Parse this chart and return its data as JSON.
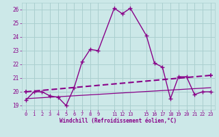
{
  "xlabel": "Windchill (Refroidissement éolien,°C)",
  "bg_color": "#cce8e8",
  "grid_color": "#aacfcf",
  "line_color": "#880088",
  "ylim": [
    18.7,
    26.5
  ],
  "xlim": [
    -0.5,
    23.5
  ],
  "yticks": [
    19,
    20,
    21,
    22,
    23,
    24,
    25,
    26
  ],
  "xticks": [
    0,
    1,
    2,
    3,
    4,
    5,
    6,
    7,
    8,
    9,
    11,
    12,
    13,
    15,
    16,
    17,
    18,
    19,
    20,
    21,
    22,
    23
  ],
  "curve1_x": [
    0,
    1,
    2,
    3,
    4,
    5,
    6,
    7,
    8,
    9,
    11,
    12,
    13,
    15,
    16,
    17,
    18,
    19,
    20,
    21,
    22,
    23
  ],
  "curve1_y": [
    19.4,
    20.0,
    20.0,
    19.7,
    19.6,
    19.0,
    20.3,
    22.2,
    23.1,
    23.0,
    26.1,
    25.7,
    26.1,
    24.1,
    22.1,
    21.8,
    19.5,
    21.1,
    21.1,
    19.8,
    20.0,
    20.0
  ],
  "curve2_x": [
    0,
    23
  ],
  "curve2_y": [
    20.0,
    21.2
  ],
  "curve3_x": [
    0,
    23
  ],
  "curve3_y": [
    19.5,
    20.3
  ]
}
